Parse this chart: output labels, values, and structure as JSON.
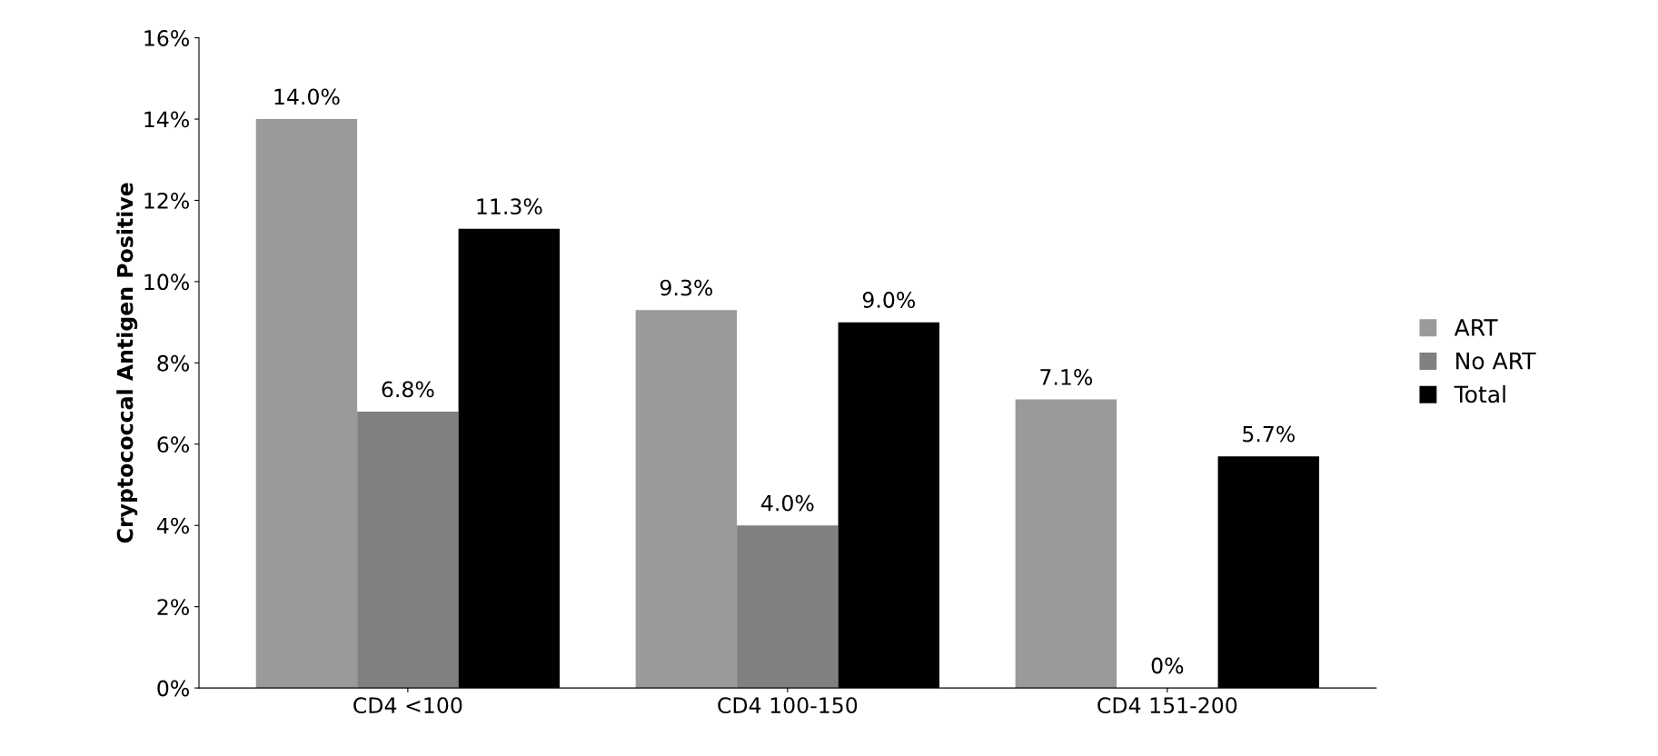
{
  "chart_data": {
    "type": "bar",
    "ylabel": "Cryptococcal Antigen Positive",
    "categories": [
      "CD4 <100",
      "CD4 100-150",
      "CD4 151-200"
    ],
    "series": [
      {
        "name": "ART",
        "color": "#9a9a9a",
        "values": [
          14.0,
          9.3,
          7.1
        ],
        "value_labels": [
          "14.0%",
          "9.3%",
          "7.1%"
        ]
      },
      {
        "name": "No ART",
        "color": "#808080",
        "values": [
          6.8,
          4.0,
          0
        ],
        "value_labels": [
          "6.8%",
          "4.0%",
          "0%"
        ]
      },
      {
        "name": "Total",
        "color": "#000000",
        "values": [
          11.3,
          9.0,
          5.7
        ],
        "value_labels": [
          "11.3%",
          "9.0%",
          "5.7%"
        ]
      }
    ],
    "ylim": [
      0,
      16
    ],
    "yticks": [
      {
        "value": 0,
        "label": "0%"
      },
      {
        "value": 2,
        "label": "2%"
      },
      {
        "value": 4,
        "label": "4%"
      },
      {
        "value": 6,
        "label": "6%"
      },
      {
        "value": 8,
        "label": "8%"
      },
      {
        "value": 10,
        "label": "10%"
      },
      {
        "value": 12,
        "label": "12%"
      },
      {
        "value": 14,
        "label": "14%"
      },
      {
        "value": 16,
        "label": "16%"
      }
    ],
    "legend": "right",
    "grid": false
  }
}
